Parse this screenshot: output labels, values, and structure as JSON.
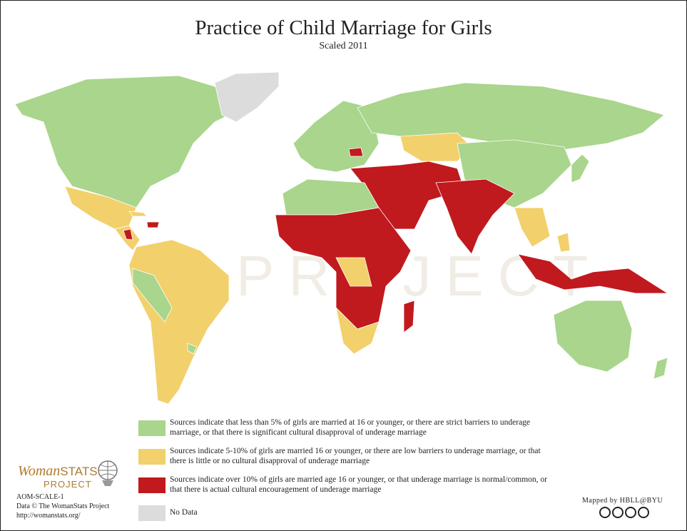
{
  "header": {
    "title": "Practice of Child Marriage for Girls",
    "subtitle": "Scaled 2011"
  },
  "watermark": "PROJECT",
  "legend": {
    "items": [
      {
        "label": "Sources indicate that less than 5% of girls are married at 16 or younger, or there are strict barriers to underage marriage, or that there is significant cultural disapproval of underage marriage",
        "color": "#a9d58c"
      },
      {
        "label": "Sources indicate 5-10% of girls are married 16 or younger, or there are low barriers to underage marriage, or that there is little or no cultural disapproval of underage marriage",
        "color": "#f2d06b"
      },
      {
        "label": "Sources indicate over 10% of girls are married age 16 or younger, or that underage marriage is normal/common, or that there is actual cultural encouragement of underage marriage",
        "color": "#c0191e"
      },
      {
        "label": "No Data",
        "color": "#dcdcdc"
      }
    ]
  },
  "footer": {
    "logo_woman": "Woman",
    "logo_stats": "STATS",
    "logo_project": "PROJECT",
    "code": "AOM-SCALE-1",
    "data_credit": "Data © The WomanStats Project",
    "url": "http://womanstats.org/",
    "mapped_by": "Mapped by HBLL@BYU"
  }
}
